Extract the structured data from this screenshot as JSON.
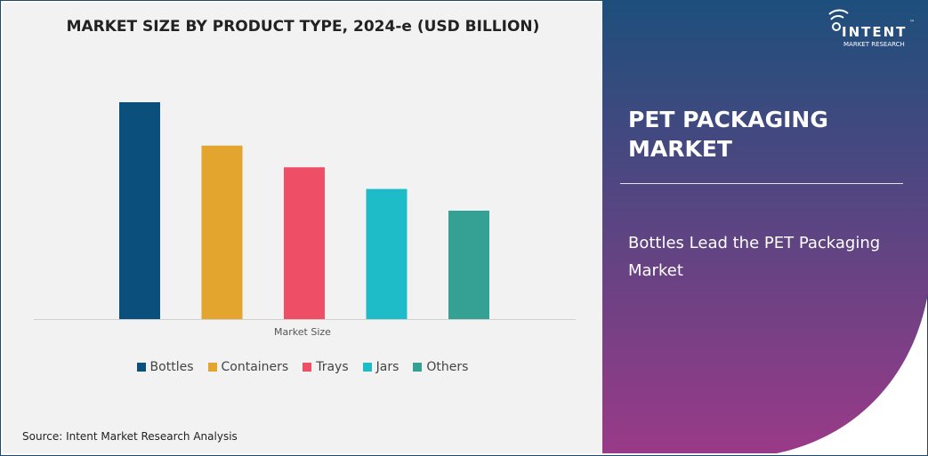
{
  "chart_data": {
    "type": "bar",
    "title": "MARKET SIZE BY PRODUCT TYPE, 2024-e (USD BILLION)",
    "xlabel": "Market Size",
    "ylabel": "",
    "categories": [
      "Bottles",
      "Containers",
      "Trays",
      "Jars",
      "Others"
    ],
    "values": [
      100,
      80,
      70,
      60,
      50
    ],
    "value_note": "relative heights; no value axis shown",
    "ylim": [
      0,
      100
    ],
    "grid": false,
    "legend_position": "bottom",
    "colors": [
      "#0b4f7c",
      "#e3a52d",
      "#ef4f66",
      "#1dbcc8",
      "#35a195"
    ]
  },
  "source": "Source: Intent Market Research Analysis",
  "panel": {
    "title": "PET PACKAGING MARKET",
    "subtitle": "Bottles Lead the PET Packaging Market",
    "gradient_top": "#1d4f7c",
    "gradient_bottom": "#9a3a88"
  },
  "logo": {
    "name": "INTENT",
    "tagline": "MARKET RESEARCH",
    "tm": "™"
  }
}
